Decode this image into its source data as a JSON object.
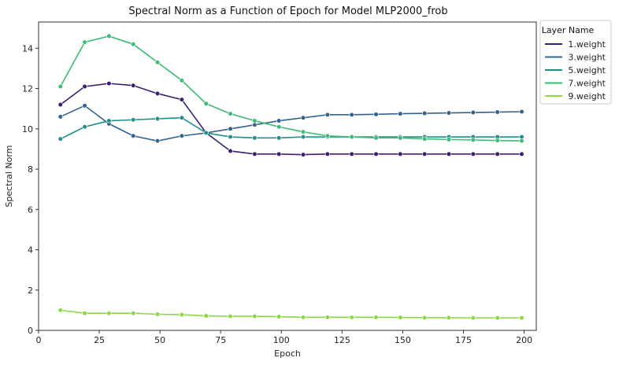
{
  "chart_data": {
    "type": "line",
    "title": "Spectral Norm as a Function of Epoch for Model MLP2000_frob",
    "xlabel": "Epoch",
    "ylabel": "Spectral Norm",
    "xlim": [
      0,
      205
    ],
    "ylim": [
      0,
      15.3
    ],
    "xticks": [
      0,
      25,
      50,
      75,
      100,
      125,
      150,
      175,
      200
    ],
    "yticks": [
      0,
      2,
      4,
      6,
      8,
      10,
      12,
      14
    ],
    "grid": false,
    "marker": "circle",
    "legend": {
      "title": "Layer Name",
      "position": "top-right-outside"
    },
    "x": [
      9,
      19,
      29,
      39,
      49,
      59,
      69,
      79,
      89,
      99,
      109,
      119,
      129,
      139,
      149,
      159,
      169,
      179,
      189,
      199
    ],
    "series": [
      {
        "name": "1.weight",
        "color": "#3b1f73",
        "values": [
          11.2,
          12.1,
          12.25,
          12.15,
          11.75,
          11.45,
          9.8,
          8.9,
          8.75,
          8.75,
          8.72,
          8.75,
          8.75,
          8.75,
          8.75,
          8.75,
          8.75,
          8.75,
          8.75,
          8.75
        ]
      },
      {
        "name": "3.weight",
        "color": "#33638d",
        "values": [
          10.6,
          11.15,
          10.25,
          9.65,
          9.4,
          9.65,
          9.8,
          10.0,
          10.2,
          10.4,
          10.55,
          10.7,
          10.7,
          10.72,
          10.75,
          10.77,
          10.79,
          10.81,
          10.83,
          10.85
        ]
      },
      {
        "name": "5.weight",
        "color": "#21908d",
        "values": [
          9.5,
          10.1,
          10.4,
          10.45,
          10.5,
          10.55,
          9.8,
          9.6,
          9.55,
          9.55,
          9.6,
          9.6,
          9.6,
          9.6,
          9.6,
          9.6,
          9.6,
          9.6,
          9.6,
          9.6
        ]
      },
      {
        "name": "7.weight",
        "color": "#3bbb75",
        "values": [
          12.1,
          14.3,
          14.6,
          14.2,
          13.3,
          12.4,
          11.25,
          10.75,
          10.4,
          10.1,
          9.85,
          9.65,
          9.6,
          9.55,
          9.55,
          9.5,
          9.47,
          9.45,
          9.42,
          9.4
        ]
      },
      {
        "name": "9.weight",
        "color": "#8ed645",
        "values": [
          1.0,
          0.85,
          0.85,
          0.85,
          0.8,
          0.78,
          0.72,
          0.7,
          0.7,
          0.68,
          0.65,
          0.65,
          0.65,
          0.65,
          0.64,
          0.63,
          0.63,
          0.62,
          0.62,
          0.62
        ]
      }
    ]
  }
}
